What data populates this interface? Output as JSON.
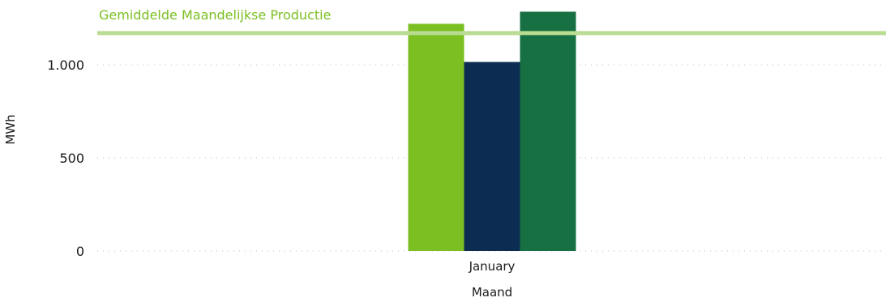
{
  "chart_data": {
    "type": "bar",
    "title": "",
    "xlabel": "Maand",
    "ylabel": "MWh",
    "categories": [
      "January"
    ],
    "ylim": [
      0,
      1250
    ],
    "yticks": [
      0,
      500,
      1000
    ],
    "ytick_labels": [
      "0",
      "500",
      "1.000"
    ],
    "grid": true,
    "series": [
      {
        "values": [
          1220
        ],
        "color": "#7bbf22"
      },
      {
        "values": [
          1015
        ],
        "color": "#0d2c52"
      },
      {
        "values": [
          1285
        ],
        "color": "#177041"
      }
    ],
    "reference_line": {
      "label": "Gemiddelde Maandelijkse Productie",
      "value": 1170,
      "color": "#b9dc92",
      "label_color": "#7bbf22"
    }
  }
}
